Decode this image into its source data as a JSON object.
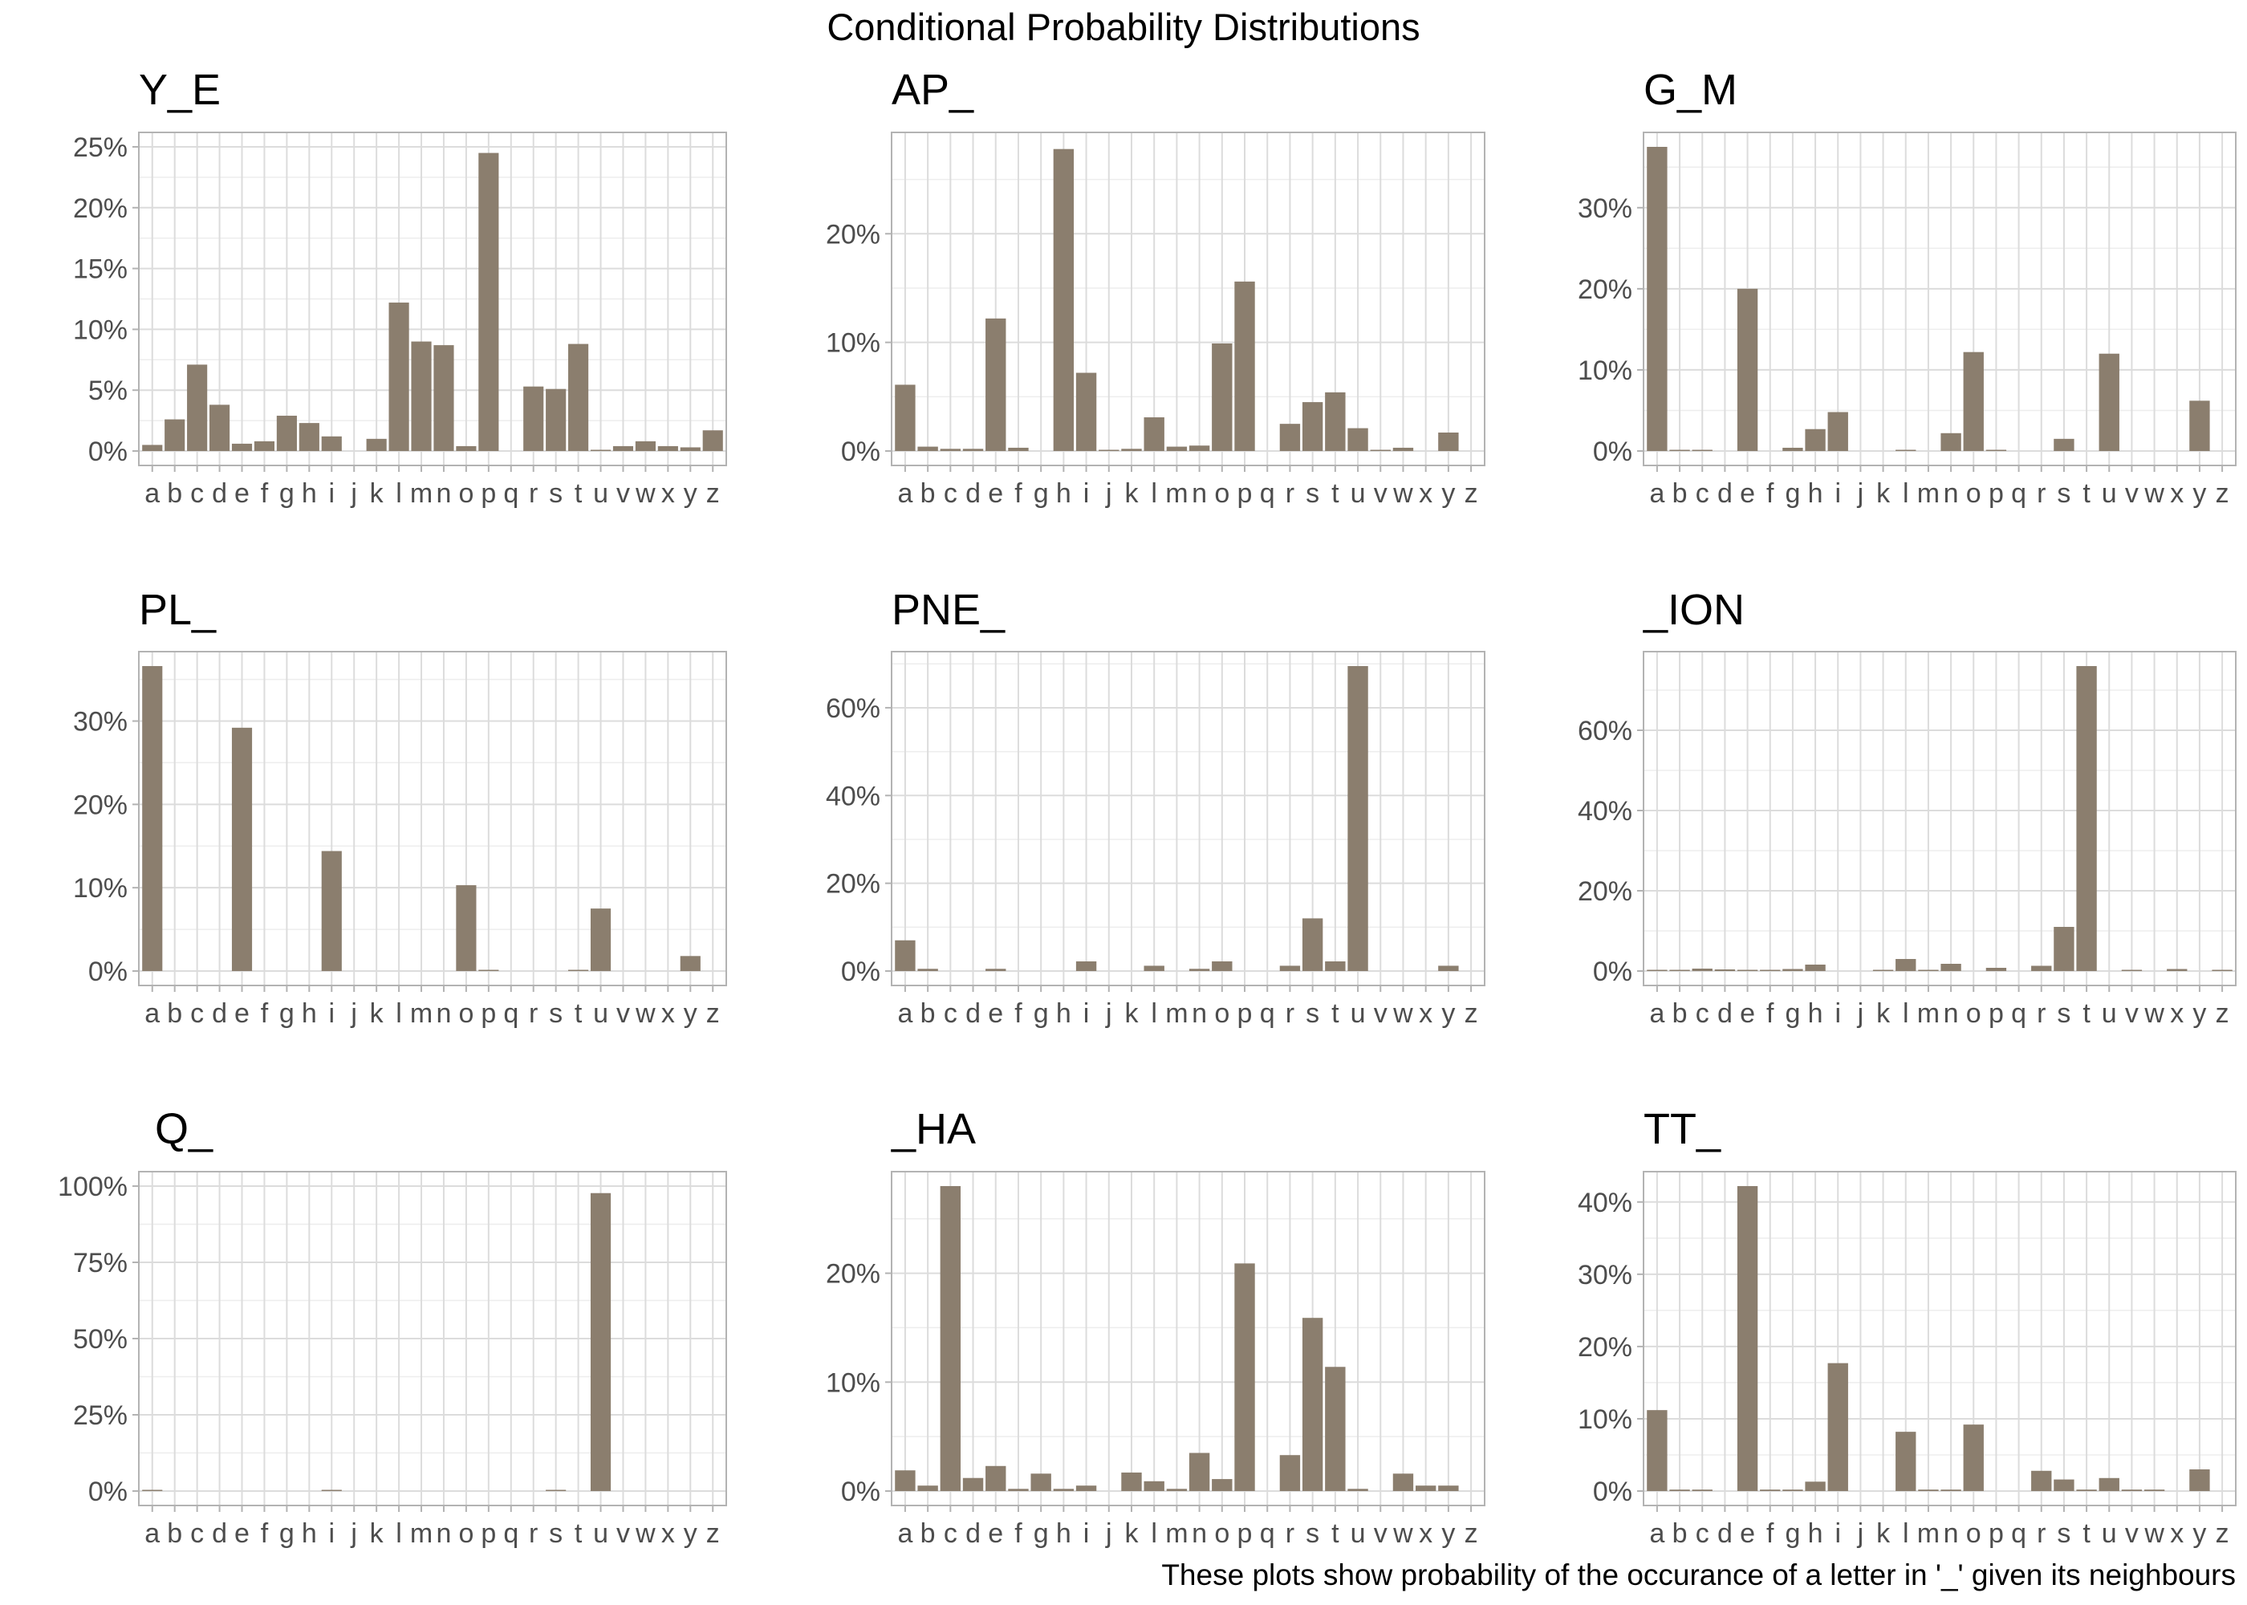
{
  "title": "Conditional Probability Distributions",
  "caption": "These plots show probability of the occurance of a letter in '_' given its neighbours",
  "colors": {
    "bar": "#8b7e6e",
    "grid_major": "#dcdcdc",
    "grid_minor": "#ededed",
    "frame": "#b3b3b3",
    "tick_text": "#4d4d4d"
  },
  "chart_data": [
    {
      "type": "bar",
      "title": "Y_E",
      "categories": [
        "a",
        "b",
        "c",
        "d",
        "e",
        "f",
        "g",
        "h",
        "i",
        "j",
        "k",
        "l",
        "m",
        "n",
        "o",
        "p",
        "q",
        "r",
        "s",
        "t",
        "u",
        "v",
        "w",
        "x",
        "y",
        "z"
      ],
      "values": [
        0.005,
        0.026,
        0.071,
        0.038,
        0.006,
        0.008,
        0.029,
        0.023,
        0.012,
        0,
        0.01,
        0.122,
        0.09,
        0.087,
        0.004,
        0.245,
        0,
        0.053,
        0.051,
        0.088,
        0.001,
        0.004,
        0.008,
        0.004,
        0.003,
        0.017
      ],
      "ylim": [
        0,
        0.25
      ],
      "yticks": [
        0,
        0.05,
        0.1,
        0.15,
        0.2,
        0.25
      ],
      "ytick_labels": [
        "0%",
        "5%",
        "10%",
        "15%",
        "20%",
        "25%"
      ]
    },
    {
      "type": "bar",
      "title": "AP_",
      "categories": [
        "a",
        "b",
        "c",
        "d",
        "e",
        "f",
        "g",
        "h",
        "i",
        "j",
        "k",
        "l",
        "m",
        "n",
        "o",
        "p",
        "q",
        "r",
        "s",
        "t",
        "u",
        "v",
        "w",
        "x",
        "y",
        "z"
      ],
      "values": [
        0.061,
        0.004,
        0.002,
        0.002,
        0.122,
        0.003,
        0,
        0.278,
        0.072,
        0.001,
        0.002,
        0.031,
        0.004,
        0.005,
        0.099,
        0.156,
        0,
        0.025,
        0.045,
        0.054,
        0.021,
        0.001,
        0.003,
        0,
        0.017,
        0
      ],
      "ylim": [
        0,
        0.28
      ],
      "yticks": [
        0,
        0.1,
        0.2
      ],
      "ytick_labels": [
        "0%",
        "10%",
        "20%"
      ]
    },
    {
      "type": "bar",
      "title": "G_M",
      "categories": [
        "a",
        "b",
        "c",
        "d",
        "e",
        "f",
        "g",
        "h",
        "i",
        "j",
        "k",
        "l",
        "m",
        "n",
        "o",
        "p",
        "q",
        "r",
        "s",
        "t",
        "u",
        "v",
        "w",
        "x",
        "y",
        "z"
      ],
      "values": [
        0.375,
        0.001,
        0.001,
        0,
        0.2,
        0,
        0.004,
        0.027,
        0.048,
        0,
        0,
        0.001,
        0,
        0.022,
        0.122,
        0.001,
        0,
        0,
        0.015,
        0,
        0.12,
        0,
        0,
        0,
        0.062,
        0
      ],
      "ylim": [
        0,
        0.375
      ],
      "yticks": [
        0,
        0.1,
        0.2,
        0.3
      ],
      "ytick_labels": [
        "0%",
        "10%",
        "20%",
        "30%"
      ]
    },
    {
      "type": "bar",
      "title": "PL_",
      "categories": [
        "a",
        "b",
        "c",
        "d",
        "e",
        "f",
        "g",
        "h",
        "i",
        "j",
        "k",
        "l",
        "m",
        "n",
        "o",
        "p",
        "q",
        "r",
        "s",
        "t",
        "u",
        "v",
        "w",
        "x",
        "y",
        "z"
      ],
      "values": [
        0.366,
        0,
        0,
        0,
        0.292,
        0,
        0,
        0,
        0.144,
        0,
        0,
        0,
        0,
        0,
        0.103,
        0.001,
        0,
        0,
        0,
        0.001,
        0.075,
        0,
        0,
        0,
        0.018,
        0
      ],
      "ylim": [
        0,
        0.366
      ],
      "yticks": [
        0,
        0.1,
        0.2,
        0.3
      ],
      "ytick_labels": [
        "0%",
        "10%",
        "20%",
        "30%"
      ]
    },
    {
      "type": "bar",
      "title": "PNE_",
      "categories": [
        "a",
        "b",
        "c",
        "d",
        "e",
        "f",
        "g",
        "h",
        "i",
        "j",
        "k",
        "l",
        "m",
        "n",
        "o",
        "p",
        "q",
        "r",
        "s",
        "t",
        "u",
        "v",
        "w",
        "x",
        "y",
        "z"
      ],
      "values": [
        0.07,
        0.005,
        0,
        0,
        0.005,
        0,
        0,
        0,
        0.022,
        0,
        0,
        0.012,
        0,
        0.005,
        0.022,
        0,
        0,
        0.012,
        0.12,
        0.022,
        0.695,
        0,
        0,
        0,
        0.012,
        0
      ],
      "ylim": [
        0,
        0.695
      ],
      "yticks": [
        0,
        0.2,
        0.4,
        0.6
      ],
      "ytick_labels": [
        "0%",
        "20%",
        "40%",
        "60%"
      ]
    },
    {
      "type": "bar",
      "title": "_ION",
      "categories": [
        "a",
        "b",
        "c",
        "d",
        "e",
        "f",
        "g",
        "h",
        "i",
        "j",
        "k",
        "l",
        "m",
        "n",
        "o",
        "p",
        "q",
        "r",
        "s",
        "t",
        "u",
        "v",
        "w",
        "x",
        "y",
        "z"
      ],
      "values": [
        0.002,
        0.003,
        0.006,
        0.004,
        0.002,
        0.001,
        0.005,
        0.016,
        0,
        0,
        0.002,
        0.03,
        0.002,
        0.018,
        0,
        0.008,
        0,
        0.013,
        0.11,
        0.76,
        0,
        0.002,
        0,
        0.005,
        0,
        0.002
      ],
      "ylim": [
        0,
        0.76
      ],
      "yticks": [
        0,
        0.2,
        0.4,
        0.6
      ],
      "ytick_labels": [
        "0%",
        "20%",
        "40%",
        "60%"
      ]
    },
    {
      "type": "bar",
      "title": "Q_",
      "categories": [
        "a",
        "b",
        "c",
        "d",
        "e",
        "f",
        "g",
        "h",
        "i",
        "j",
        "k",
        "l",
        "m",
        "n",
        "o",
        "p",
        "q",
        "r",
        "s",
        "t",
        "u",
        "v",
        "w",
        "x",
        "y",
        "z"
      ],
      "values": [
        0.004,
        0,
        0,
        0,
        0,
        0,
        0,
        0,
        0.003,
        0,
        0,
        0,
        0,
        0,
        0,
        0,
        0,
        0,
        0.002,
        0,
        0.977,
        0,
        0,
        0,
        0,
        0
      ],
      "ylim": [
        0,
        1.0
      ],
      "yticks": [
        0,
        0.25,
        0.5,
        0.75,
        1.0
      ],
      "ytick_labels": [
        "0%",
        "25%",
        "50%",
        "75%",
        "100%"
      ]
    },
    {
      "type": "bar",
      "title": "_HA",
      "categories": [
        "a",
        "b",
        "c",
        "d",
        "e",
        "f",
        "g",
        "h",
        "i",
        "j",
        "k",
        "l",
        "m",
        "n",
        "o",
        "p",
        "q",
        "r",
        "s",
        "t",
        "u",
        "v",
        "w",
        "x",
        "y",
        "z"
      ],
      "values": [
        0.019,
        0.005,
        0.28,
        0.012,
        0.023,
        0.002,
        0.016,
        0.002,
        0.005,
        0,
        0.017,
        0.009,
        0.002,
        0.035,
        0.011,
        0.209,
        0,
        0.033,
        0.159,
        0.114,
        0.002,
        0,
        0.016,
        0.005,
        0.005,
        0
      ],
      "ylim": [
        0,
        0.28
      ],
      "yticks": [
        0,
        0.1,
        0.2
      ],
      "ytick_labels": [
        "0%",
        "10%",
        "20%"
      ]
    },
    {
      "type": "bar",
      "title": "TT_",
      "categories": [
        "a",
        "b",
        "c",
        "d",
        "e",
        "f",
        "g",
        "h",
        "i",
        "j",
        "k",
        "l",
        "m",
        "n",
        "o",
        "p",
        "q",
        "r",
        "s",
        "t",
        "u",
        "v",
        "w",
        "x",
        "y",
        "z"
      ],
      "values": [
        0.112,
        0.002,
        0.002,
        0,
        0.422,
        0.002,
        0.002,
        0.013,
        0.177,
        0,
        0,
        0.082,
        0.002,
        0.002,
        0.092,
        0,
        0,
        0.028,
        0.016,
        0.002,
        0.018,
        0.002,
        0.002,
        0,
        0.03,
        0
      ],
      "ylim": [
        0,
        0.422
      ],
      "yticks": [
        0,
        0.1,
        0.2,
        0.3,
        0.4
      ],
      "ytick_labels": [
        "0%",
        "10%",
        "20%",
        "30%",
        "40%"
      ]
    }
  ]
}
